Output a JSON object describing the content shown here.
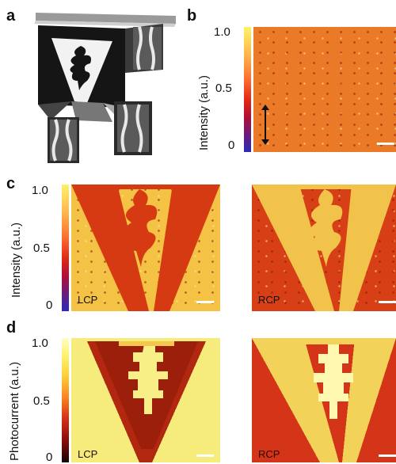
{
  "panels": {
    "a": {
      "letter": "a"
    },
    "b": {
      "letter": "b",
      "ylabel": "Intensity (a.u.)",
      "ticks": [
        "1.0",
        "0.5",
        "0"
      ]
    },
    "c": {
      "letter": "c",
      "ylabel": "Intensity (a.u.)",
      "ticks": [
        "1.0",
        "0.5",
        "0"
      ],
      "left_label": "LCP",
      "right_label": "RCP"
    },
    "d": {
      "letter": "d",
      "ylabel": "Photocurrent (a.u.)",
      "ticks": [
        "1.0",
        "0.5",
        "0"
      ],
      "left_label": "LCP",
      "right_label": "RCP"
    }
  },
  "colors": {
    "intensity_map": [
      "#fff16a",
      "#ffb04a",
      "#e22a14",
      "#6b1b7d",
      "#2b2ab8"
    ],
    "photocurrent_map": [
      "#fffdc4",
      "#fff36a",
      "#f98420",
      "#8a0d0a",
      "#140404"
    ],
    "film_orange": "#ea7a28",
    "film_red": "#d93a12",
    "film_yellow": "#f6c84a"
  }
}
